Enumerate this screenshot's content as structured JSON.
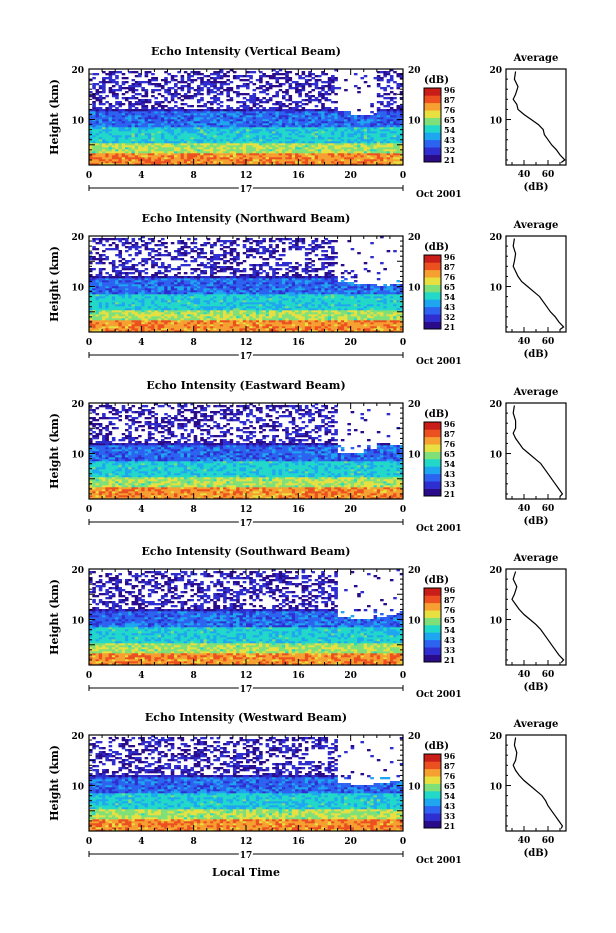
{
  "figure": {
    "x_axis_title": "Local Time",
    "ylabel": "Height (km)",
    "date_day": "17",
    "date_suffix": "Oct 2001",
    "average_title": "Average",
    "average_xlabel": "(dB)",
    "colorbar_unit": "(dB)"
  },
  "colorbar": {
    "tick_labels_a": [
      "96",
      "87",
      "76",
      "65",
      "54",
      "43",
      "32",
      "21"
    ],
    "tick_labels_b": [
      "96",
      "87",
      "76",
      "65",
      "54",
      "43",
      "33",
      "21"
    ],
    "colors": [
      "#2a0c8a",
      "#2f2ed0",
      "#2c63f0",
      "#1fa6f0",
      "#22d8c8",
      "#7fe07a",
      "#e8e040",
      "#f5a030",
      "#ec5020",
      "#c81d18"
    ]
  },
  "chart_data": [
    {
      "type": "heatmap",
      "title": "Echo Intensity (Vertical Beam)",
      "xlabel": "",
      "ylabel": "Height (km)",
      "x_ticks": [
        "0",
        "4",
        "8",
        "12",
        "16",
        "20",
        "0"
      ],
      "xlim": [
        0,
        24
      ],
      "y_ticks": [
        "10",
        "20"
      ],
      "ylim": [
        1,
        20
      ],
      "colorbar_range": [
        21,
        96
      ],
      "colorbar_ticks": [
        "96",
        "87",
        "76",
        "65",
        "54",
        "43",
        "32",
        "21"
      ],
      "echo_top_km": [
        19.5,
        19.5,
        19.5,
        19.5,
        19.5,
        19.5,
        19.5,
        19.5,
        19.5,
        19.5,
        19.5,
        19.5,
        19.5,
        19.5,
        19.5,
        19.5,
        19.5,
        19.5,
        19.5,
        11.5,
        11,
        11,
        19.5,
        19.5,
        19.5
      ],
      "average_profile": {
        "xlim": [
          25,
          75
        ],
        "x_ticks": [
          "40",
          "60"
        ],
        "y_ticks": [
          "10",
          "20"
        ],
        "ylim": [
          1,
          20
        ],
        "height_km": [
          19.5,
          18,
          16.5,
          15,
          14,
          13,
          12,
          11,
          10,
          9,
          8,
          7,
          6,
          5,
          4,
          3,
          2,
          1.5
        ],
        "db": [
          33,
          32,
          35,
          33,
          31,
          34,
          35,
          40,
          46,
          52,
          56,
          57,
          60,
          63,
          67,
          70,
          74,
          71
        ]
      }
    },
    {
      "type": "heatmap",
      "title": "Echo Intensity (Northward Beam)",
      "xlabel": "",
      "ylabel": "Height (km)",
      "x_ticks": [
        "0",
        "4",
        "8",
        "12",
        "16",
        "20",
        "0"
      ],
      "xlim": [
        0,
        24
      ],
      "y_ticks": [
        "10",
        "20"
      ],
      "ylim": [
        1,
        20
      ],
      "colorbar_range": [
        21,
        96
      ],
      "colorbar_ticks": [
        "96",
        "87",
        "76",
        "65",
        "54",
        "43",
        "32",
        "21"
      ],
      "echo_top_km": [
        19.5,
        19.5,
        19.5,
        19.5,
        19.5,
        19.5,
        19.5,
        19.5,
        19.5,
        19.5,
        19.5,
        19.5,
        19.5,
        19.5,
        19.5,
        19.5,
        19.5,
        19.5,
        19.5,
        11,
        10.5,
        10.5,
        10,
        10.5,
        10.5
      ],
      "average_profile": {
        "xlim": [
          25,
          75
        ],
        "x_ticks": [
          "40",
          "60"
        ],
        "y_ticks": [
          "10",
          "20"
        ],
        "ylim": [
          1,
          20
        ],
        "height_km": [
          19.5,
          18,
          16.5,
          15,
          14,
          13,
          12,
          11,
          10,
          9,
          8,
          7,
          6,
          5,
          4,
          3,
          2,
          1.5
        ],
        "db": [
          32,
          31,
          33,
          32,
          31,
          33,
          35,
          38,
          43,
          48,
          53,
          56,
          59,
          62,
          66,
          69,
          73,
          70
        ]
      }
    },
    {
      "type": "heatmap",
      "title": "Echo Intensity (Eastward Beam)",
      "xlabel": "",
      "ylabel": "Height (km)",
      "x_ticks": [
        "0",
        "4",
        "8",
        "12",
        "16",
        "20",
        "0"
      ],
      "xlim": [
        0,
        24
      ],
      "y_ticks": [
        "10",
        "20"
      ],
      "ylim": [
        1,
        20
      ],
      "colorbar_range": [
        21,
        96
      ],
      "colorbar_ticks": [
        "96",
        "87",
        "76",
        "65",
        "54",
        "43",
        "33",
        "21"
      ],
      "echo_top_km": [
        19.5,
        19.5,
        19.5,
        19.5,
        19.5,
        19.5,
        19.5,
        19.5,
        19.5,
        19.5,
        19.5,
        19.5,
        19.5,
        19.5,
        19.5,
        19.5,
        19.5,
        19.5,
        19.5,
        10,
        10,
        11,
        12,
        11.5,
        11
      ],
      "average_profile": {
        "xlim": [
          25,
          75
        ],
        "x_ticks": [
          "40",
          "60"
        ],
        "y_ticks": [
          "10",
          "20"
        ],
        "ylim": [
          1,
          20
        ],
        "height_km": [
          19.5,
          18,
          16.5,
          15,
          14,
          13,
          12,
          11,
          10,
          9,
          8,
          7,
          6,
          5,
          4,
          3,
          2,
          1.5
        ],
        "db": [
          32,
          31,
          33,
          33,
          31,
          33,
          36,
          39,
          44,
          49,
          54,
          57,
          60,
          63,
          66,
          69,
          72,
          70
        ]
      }
    },
    {
      "type": "heatmap",
      "title": "Echo Intensity (Southward Beam)",
      "xlabel": "",
      "ylabel": "Height (km)",
      "x_ticks": [
        "0",
        "4",
        "8",
        "12",
        "16",
        "20",
        "0"
      ],
      "xlim": [
        0,
        24
      ],
      "y_ticks": [
        "10",
        "20"
      ],
      "ylim": [
        1,
        20
      ],
      "colorbar_range": [
        21,
        96
      ],
      "colorbar_ticks": [
        "96",
        "87",
        "76",
        "65",
        "54",
        "43",
        "33",
        "21"
      ],
      "echo_top_km": [
        19.5,
        19.5,
        19.5,
        19.5,
        19.5,
        19.5,
        19.5,
        19.5,
        19.5,
        19.5,
        19.5,
        19.5,
        19.5,
        19.5,
        19.5,
        19.5,
        19.5,
        19.5,
        19.5,
        10.5,
        10,
        10,
        10.5,
        11,
        10.5
      ],
      "average_profile": {
        "xlim": [
          25,
          75
        ],
        "x_ticks": [
          "40",
          "60"
        ],
        "y_ticks": [
          "10",
          "20"
        ],
        "ylim": [
          1,
          20
        ],
        "height_km": [
          19.5,
          18,
          16.5,
          15,
          14,
          13,
          12,
          11,
          10,
          9,
          8,
          7,
          6,
          5,
          4,
          3,
          2,
          1.5
        ],
        "db": [
          33,
          31,
          34,
          32,
          30,
          33,
          36,
          40,
          45,
          50,
          54,
          57,
          60,
          63,
          66,
          69,
          73,
          71
        ]
      }
    },
    {
      "type": "heatmap",
      "title": "Echo Intensity (Westward Beam)",
      "xlabel": "Local Time",
      "ylabel": "Height (km)",
      "x_ticks": [
        "0",
        "4",
        "8",
        "12",
        "16",
        "20",
        "0"
      ],
      "xlim": [
        0,
        24
      ],
      "y_ticks": [
        "10",
        "20"
      ],
      "ylim": [
        1,
        20
      ],
      "colorbar_range": [
        21,
        96
      ],
      "colorbar_ticks": [
        "96",
        "87",
        "76",
        "65",
        "54",
        "43",
        "33",
        "21"
      ],
      "echo_top_km": [
        19.5,
        19.5,
        19.5,
        19.5,
        19.5,
        19.5,
        19.5,
        19.5,
        19.5,
        19.5,
        19.5,
        19.5,
        19.5,
        19.5,
        19.5,
        19.5,
        19.5,
        19.5,
        19.5,
        10.5,
        10,
        10,
        10.5,
        11,
        10.5
      ],
      "average_profile": {
        "xlim": [
          25,
          75
        ],
        "x_ticks": [
          "40",
          "60"
        ],
        "y_ticks": [
          "10",
          "20"
        ],
        "ylim": [
          1,
          20
        ],
        "height_km": [
          19.5,
          18,
          16.5,
          15,
          14,
          13,
          12,
          11,
          10,
          9,
          8,
          7,
          6,
          5,
          4,
          3,
          2,
          1.5
        ],
        "db": [
          33,
          32,
          34,
          33,
          31,
          33,
          36,
          40,
          45,
          50,
          55,
          58,
          60,
          63,
          66,
          69,
          72,
          71
        ]
      }
    }
  ]
}
